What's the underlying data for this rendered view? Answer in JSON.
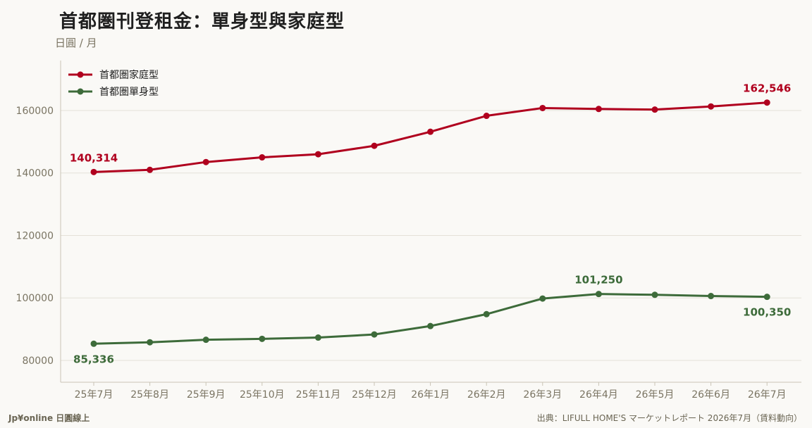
{
  "header": {
    "title": "首都圏刊登租金：單身型與家庭型",
    "unit": "日圓 / 月"
  },
  "footer": {
    "left": "Jp¥online 日圓線上",
    "right": "出典：LIFULL HOME'S マーケットレポート 2026年7月（賃料動向）"
  },
  "chart_data": {
    "type": "line",
    "categories": [
      "25年7月",
      "25年8月",
      "25年9月",
      "25年10月",
      "25年11月",
      "25年12月",
      "26年1月",
      "26年2月",
      "26年3月",
      "26年4月",
      "26年5月",
      "26年6月",
      "26年7月"
    ],
    "ylim": [
      73000,
      176000
    ],
    "yticks": [
      80000,
      100000,
      120000,
      140000,
      160000
    ],
    "grid": true,
    "legend": "top-left",
    "series": [
      {
        "name": "首都圏家庭型",
        "color": "#b0001e",
        "values": [
          140314,
          141000,
          143500,
          145000,
          146000,
          148700,
          153200,
          158300,
          160800,
          160500,
          160300,
          161300,
          162546
        ],
        "labels": [
          {
            "index": 0,
            "text": "140,314",
            "pos": "above"
          },
          {
            "index": 12,
            "text": "162,546",
            "pos": "above"
          }
        ]
      },
      {
        "name": "首都圏單身型",
        "color": "#3d6b3a",
        "values": [
          85336,
          85800,
          86600,
          86900,
          87300,
          88300,
          91000,
          94800,
          99800,
          101250,
          101000,
          100600,
          100350
        ],
        "labels": [
          {
            "index": 0,
            "text": "85,336",
            "pos": "below"
          },
          {
            "index": 9,
            "text": "101,250",
            "pos": "above"
          },
          {
            "index": 12,
            "text": "100,350",
            "pos": "below"
          }
        ]
      }
    ]
  }
}
